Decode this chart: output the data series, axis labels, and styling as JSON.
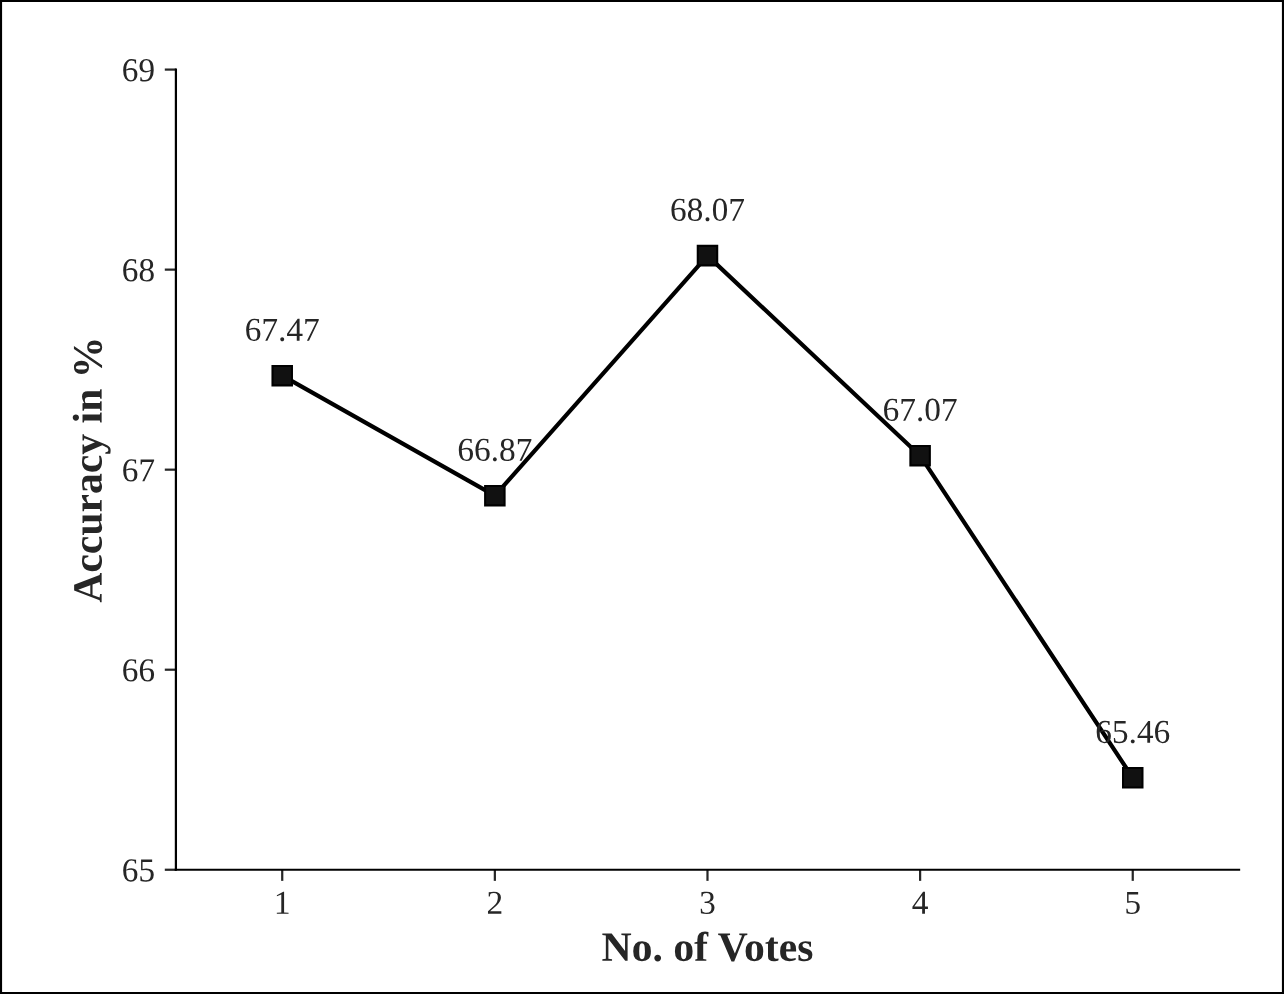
{
  "chart_data": {
    "type": "line",
    "xlabel": "No. of Votes",
    "ylabel": "Accuracy in %",
    "categories": [
      "1",
      "2",
      "3",
      "4",
      "5"
    ],
    "series": [
      {
        "color": "#000000",
        "values": [
          67.47,
          66.87,
          68.07,
          67.07,
          65.46
        ]
      }
    ],
    "ylim": [
      65,
      69
    ],
    "yticks": [
      65,
      66,
      67,
      68,
      69
    ],
    "grid": false,
    "legend": false,
    "marker": "square",
    "line_style": "solid",
    "data_labels": true
  }
}
